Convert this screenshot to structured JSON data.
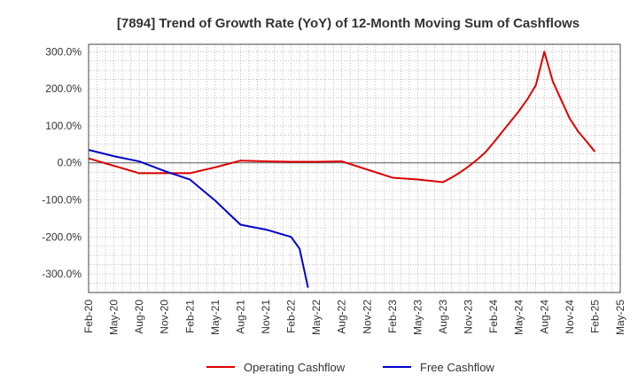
{
  "chart_data": {
    "type": "line",
    "title": "[7894]  Trend of Growth Rate (YoY) of 12-Month Moving Sum of Cashflows",
    "xlabel": "",
    "ylabel": "",
    "ylim": [
      -350,
      320
    ],
    "y_ticks": [
      300,
      200,
      100,
      0,
      -100,
      -200,
      -300
    ],
    "y_tick_labels": [
      "300.0%",
      "200.0%",
      "100.0%",
      "0.0%",
      "-100.0%",
      "-200.0%",
      "-300.0%"
    ],
    "x_tick_labels": [
      "Feb-20",
      "May-20",
      "Aug-20",
      "Nov-20",
      "Feb-21",
      "May-21",
      "Aug-21",
      "Nov-21",
      "Feb-22",
      "May-22",
      "Aug-22",
      "Nov-22",
      "Feb-23",
      "May-23",
      "Aug-23",
      "Nov-23",
      "Feb-24",
      "May-24",
      "Aug-24",
      "Nov-24",
      "Feb-25",
      "May-25"
    ],
    "x_range": [
      "Feb-20",
      "May-25"
    ],
    "grid": true,
    "legend_position": "bottom",
    "series": [
      {
        "name": "Operating Cashflow",
        "color": "#dd0000",
        "points": [
          [
            "Feb-20",
            12
          ],
          [
            "May-20",
            -8
          ],
          [
            "Aug-20",
            -28
          ],
          [
            "Nov-20",
            -28
          ],
          [
            "Feb-21",
            -28
          ],
          [
            "May-21",
            -12
          ],
          [
            "Aug-21",
            6
          ],
          [
            "Nov-21",
            4
          ],
          [
            "Feb-22",
            3
          ],
          [
            "May-22",
            3
          ],
          [
            "Aug-22",
            4
          ],
          [
            "Nov-22",
            -18
          ],
          [
            "Feb-23",
            -40
          ],
          [
            "May-23",
            -45
          ],
          [
            "Aug-23",
            -52
          ],
          [
            "Sep-23",
            -40
          ],
          [
            "Oct-23",
            -26
          ],
          [
            "Nov-23",
            -10
          ],
          [
            "Dec-23",
            8
          ],
          [
            "Jan-24",
            28
          ],
          [
            "Feb-24",
            55
          ],
          [
            "May-24",
            140
          ],
          [
            "Jun-24",
            172
          ],
          [
            "Jul-24",
            210
          ],
          [
            "Aug-24",
            300
          ],
          [
            "Sep-24",
            220
          ],
          [
            "Oct-24",
            170
          ],
          [
            "Nov-24",
            120
          ],
          [
            "Dec-24",
            85
          ],
          [
            "Jan-25",
            58
          ],
          [
            "Feb-25",
            30
          ]
        ]
      },
      {
        "name": "Free Cashflow",
        "color": "#0000cc",
        "points": [
          [
            "Feb-20",
            35
          ],
          [
            "May-20",
            18
          ],
          [
            "Aug-20",
            4
          ],
          [
            "Nov-20",
            -22
          ],
          [
            "Feb-21",
            -45
          ],
          [
            "May-21",
            -102
          ],
          [
            "Aug-21",
            -167
          ],
          [
            "Nov-21",
            -180
          ],
          [
            "Feb-22",
            -200
          ],
          [
            "Mar-22",
            -232
          ],
          [
            "Apr-22",
            -337
          ]
        ]
      }
    ]
  }
}
